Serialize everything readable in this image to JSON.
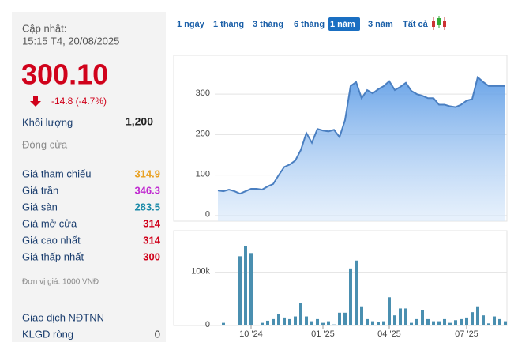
{
  "panel": {
    "updated_label": "Cập nhật:",
    "updated_time": "15:15 T4, 20/08/2025",
    "price": "300.10",
    "change": "-14.8 (-4.7%)",
    "volume_label": "Khối lượng",
    "volume_value": "1,200",
    "close_label": "Đóng cửa",
    "rows": [
      {
        "label": "Giá tham chiếu",
        "value": "314.9",
        "color": "#e8a020"
      },
      {
        "label": "Giá trần",
        "value": "346.3",
        "color": "#c02ad0"
      },
      {
        "label": "Giá sàn",
        "value": "283.5",
        "color": "#1a8aa8"
      },
      {
        "label": "Giá mở cửa",
        "value": "314",
        "color": "#d0021b"
      },
      {
        "label": "Giá cao nhất",
        "value": "314",
        "color": "#d0021b"
      },
      {
        "label": "Giá thấp nhất",
        "value": "300",
        "color": "#d0021b"
      }
    ],
    "unit": "Đơn vị giá: 1000 VNĐ",
    "foreign_label": "Giao dịch NĐTNN",
    "net_label": "KLGD ròng",
    "net_value": "0"
  },
  "tabs": {
    "items": [
      "1 ngày",
      "1 tháng",
      "3 tháng",
      "6 tháng",
      "1 năm",
      "3 năm",
      "Tất cả"
    ],
    "selected": 4
  },
  "chart_data": [
    {
      "type": "area",
      "color": "#4a7fc1",
      "values": [
        62,
        60,
        64,
        60,
        54,
        60,
        66,
        66,
        64,
        72,
        78,
        100,
        120,
        126,
        136,
        162,
        204,
        180,
        214,
        210,
        208,
        212,
        194,
        236,
        320,
        330,
        290,
        310,
        302,
        312,
        320,
        332,
        310,
        318,
        328,
        308,
        300,
        296,
        290,
        290,
        274,
        274,
        270,
        268,
        274,
        284,
        288,
        342,
        330,
        320,
        320,
        320,
        320
      ],
      "ylim": [
        -14,
        396
      ],
      "yticks": [
        0,
        100,
        200,
        300
      ],
      "grid": true
    },
    {
      "type": "bar",
      "color": "#4a8fb0",
      "categories": [
        null,
        null,
        null,
        null,
        null,
        null,
        "10 '24",
        null,
        null,
        null,
        null,
        null,
        null,
        null,
        null,
        null,
        null,
        null,
        null,
        "01 '25",
        null,
        null,
        null,
        null,
        null,
        null,
        null,
        null,
        null,
        null,
        null,
        "04 '25",
        null,
        null,
        null,
        null,
        null,
        null,
        null,
        null,
        null,
        null,
        null,
        null,
        null,
        "07 '25",
        null,
        null,
        null,
        null,
        null,
        null,
        null
      ],
      "values": [
        0,
        5000,
        0,
        0,
        130000,
        149000,
        136000,
        0,
        5000,
        9000,
        12000,
        22000,
        15000,
        12000,
        17000,
        42000,
        17000,
        8000,
        12000,
        5000,
        8000,
        2000,
        24000,
        24000,
        107000,
        122000,
        36000,
        12000,
        8000,
        7000,
        8000,
        53000,
        19000,
        32000,
        32000,
        5000,
        12000,
        29000,
        12000,
        8000,
        8000,
        12000,
        5000,
        10000,
        12000,
        15000,
        25000,
        36000,
        19000,
        4000,
        17000,
        12000,
        8000
      ],
      "ylim": [
        0,
        178000
      ],
      "yticks": [
        0,
        {
          "value": 100000,
          "label": "100k"
        }
      ],
      "grid": true
    }
  ]
}
